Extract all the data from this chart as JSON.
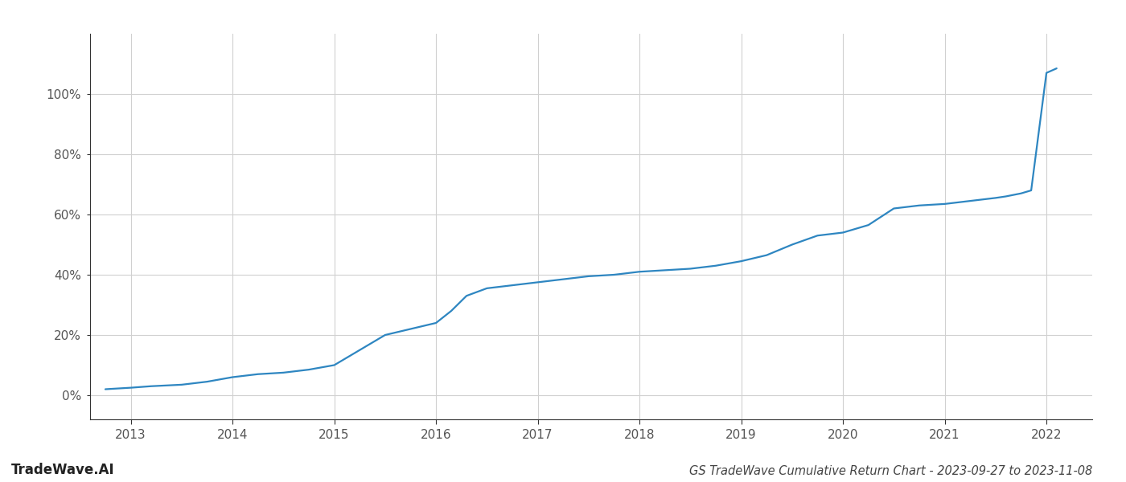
{
  "title": "GS TradeWave Cumulative Return Chart - 2023-09-27 to 2023-11-08",
  "watermark": "TradeWave.AI",
  "line_color": "#2e86c1",
  "background_color": "#ffffff",
  "grid_color": "#d0d0d0",
  "x_values": [
    2012.75,
    2013.0,
    2013.2,
    2013.5,
    2013.75,
    2014.0,
    2014.25,
    2014.5,
    2014.75,
    2015.0,
    2015.25,
    2015.5,
    2015.75,
    2016.0,
    2016.15,
    2016.3,
    2016.5,
    2016.75,
    2017.0,
    2017.25,
    2017.5,
    2017.75,
    2018.0,
    2018.25,
    2018.5,
    2018.75,
    2019.0,
    2019.25,
    2019.5,
    2019.75,
    2020.0,
    2020.25,
    2020.5,
    2020.75,
    2021.0,
    2021.25,
    2021.5,
    2021.6,
    2021.75,
    2021.85,
    2022.0,
    2022.1
  ],
  "y_values": [
    2.0,
    2.5,
    3.0,
    3.5,
    4.5,
    6.0,
    7.0,
    7.5,
    8.5,
    10.0,
    15.0,
    20.0,
    22.0,
    24.0,
    28.0,
    33.0,
    35.5,
    36.5,
    37.5,
    38.5,
    39.5,
    40.0,
    41.0,
    41.5,
    42.0,
    43.0,
    44.5,
    46.5,
    50.0,
    53.0,
    54.0,
    56.5,
    62.0,
    63.0,
    63.5,
    64.5,
    65.5,
    66.0,
    67.0,
    68.0,
    107.0,
    108.5
  ],
  "xlim": [
    2012.6,
    2022.45
  ],
  "ylim": [
    -8,
    120
  ],
  "yticks": [
    0,
    20,
    40,
    60,
    80,
    100
  ],
  "xticks": [
    2013,
    2014,
    2015,
    2016,
    2017,
    2018,
    2019,
    2020,
    2021,
    2022
  ],
  "line_width": 1.6,
  "title_fontsize": 10.5,
  "watermark_fontsize": 12,
  "tick_fontsize": 11,
  "spine_color": "#333333",
  "tick_color": "#555555"
}
